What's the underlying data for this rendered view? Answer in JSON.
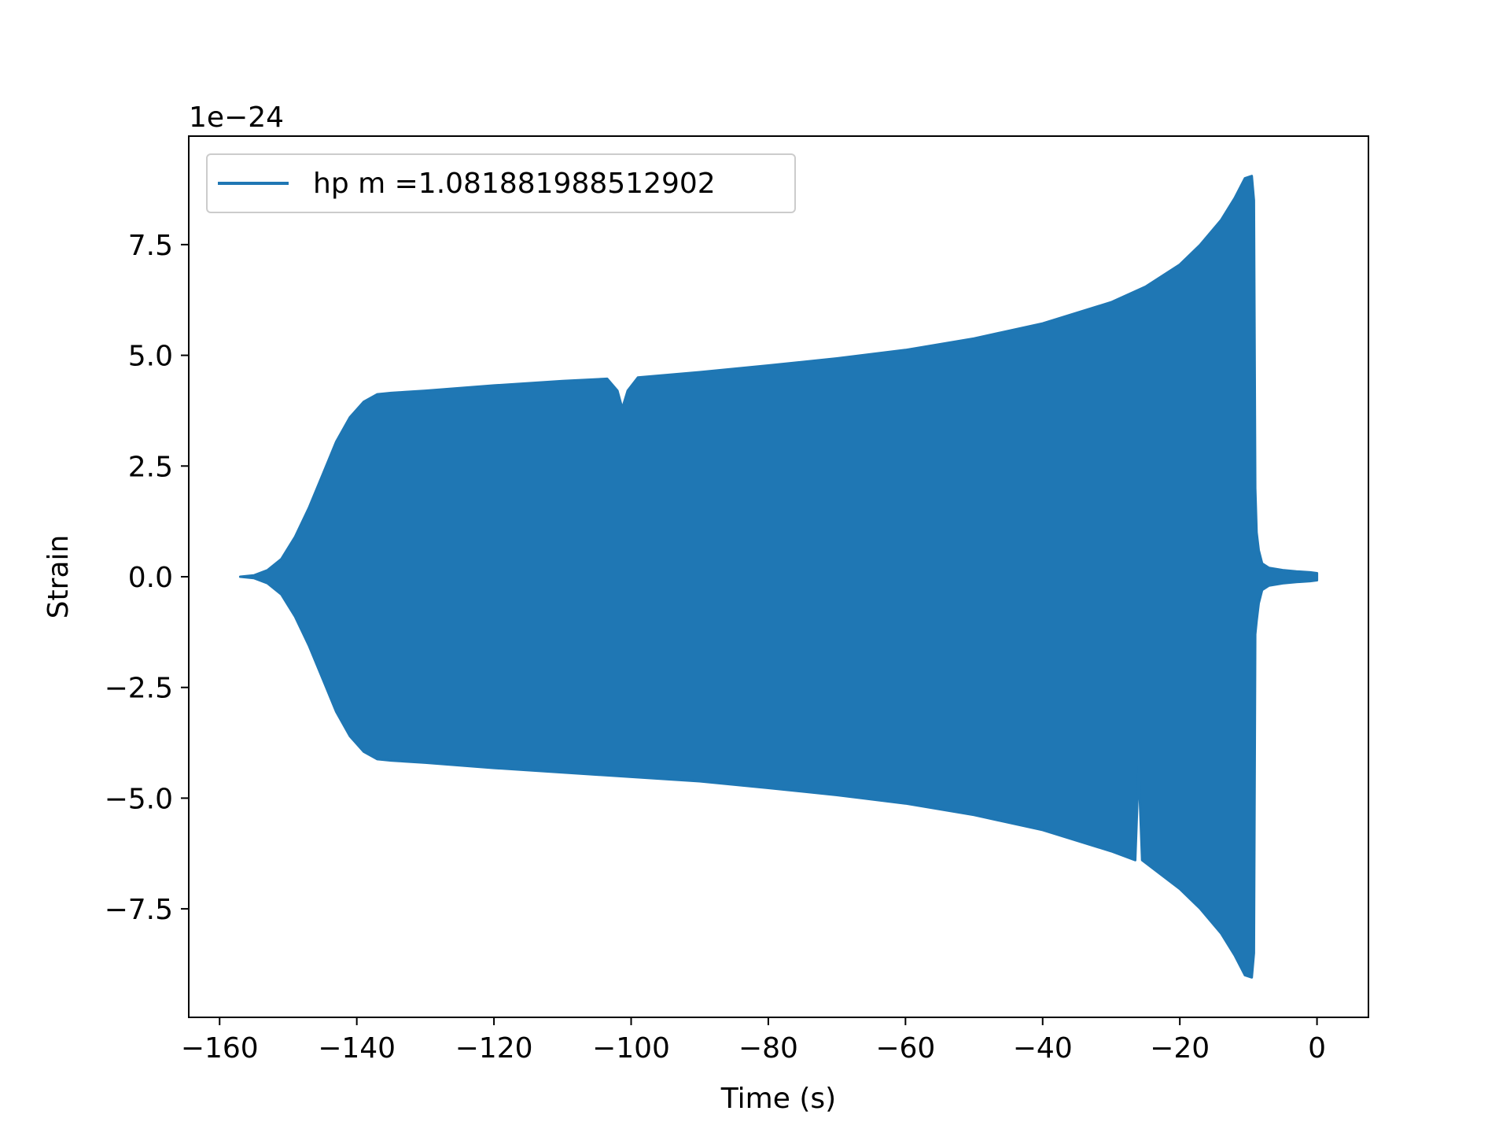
{
  "chart_data": {
    "type": "line",
    "xlabel": "Time (s)",
    "ylabel": "Strain",
    "y_offset_label": "1e−24",
    "xlim": [
      -164.5,
      7.5
    ],
    "ylim": [
      -9.95,
      9.95
    ],
    "x_ticks": [
      -160,
      -140,
      -120,
      -100,
      -80,
      -60,
      -40,
      -20,
      0
    ],
    "x_tick_labels": [
      "−160",
      "−140",
      "−120",
      "−100",
      "−80",
      "−60",
      "−40",
      "−20",
      "0"
    ],
    "y_ticks": [
      -7.5,
      -5.0,
      -2.5,
      0.0,
      2.5,
      5.0,
      7.5
    ],
    "y_tick_labels": [
      "−7.5",
      "−5.0",
      "−2.5",
      "0.0",
      "2.5",
      "5.0",
      "7.5"
    ],
    "grid": false,
    "legend_position": "top-left",
    "series": [
      {
        "name": "hp m =1.081881988512902",
        "color": "#1f77b4",
        "envelope_upper": {
          "x": [
            -157.0,
            -155.0,
            -153.0,
            -151.0,
            -149.0,
            -147.0,
            -145.0,
            -143.0,
            -141.0,
            -139.0,
            -137.0,
            -135.0,
            -133.0,
            -130.0,
            -120.0,
            -110.0,
            -103.5,
            -102.0,
            -101.3,
            -100.5,
            -99.0,
            -90.0,
            -80.0,
            -70.0,
            -60.0,
            -50.0,
            -40.0,
            -30.0,
            -25.0,
            -20.0,
            -17.0,
            -14.0,
            -12.0,
            -10.5,
            -9.5,
            -9.2,
            -9.0,
            -8.8,
            -8.5,
            -8.0,
            -7.0,
            -5.0,
            -3.0,
            -1.0,
            0.0
          ],
          "y": [
            0.0,
            0.03,
            0.15,
            0.4,
            0.9,
            1.55,
            2.3,
            3.05,
            3.6,
            3.95,
            4.12,
            4.15,
            4.17,
            4.2,
            4.32,
            4.42,
            4.47,
            4.2,
            3.8,
            4.2,
            4.5,
            4.62,
            4.77,
            4.93,
            5.12,
            5.38,
            5.72,
            6.2,
            6.55,
            7.05,
            7.5,
            8.05,
            8.55,
            9.0,
            9.05,
            8.5,
            2.0,
            1.0,
            0.6,
            0.3,
            0.2,
            0.15,
            0.12,
            0.1,
            0.08
          ]
        },
        "envelope_lower": {
          "x": [
            -157.0,
            -155.0,
            -153.0,
            -151.0,
            -149.0,
            -147.0,
            -145.0,
            -143.0,
            -141.0,
            -139.0,
            -137.0,
            -135.0,
            -133.0,
            -130.0,
            -120.0,
            -110.0,
            -100.0,
            -90.0,
            -80.0,
            -70.0,
            -60.0,
            -50.0,
            -40.0,
            -30.0,
            -26.5,
            -26.0,
            -25.5,
            -20.0,
            -17.0,
            -14.0,
            -12.0,
            -10.5,
            -9.5,
            -9.2,
            -9.0,
            -8.8,
            -8.5,
            -8.0,
            -7.0,
            -5.0,
            -3.0,
            -1.0,
            0.0
          ],
          "y": [
            0.0,
            -0.03,
            -0.15,
            -0.4,
            -0.9,
            -1.55,
            -2.3,
            -3.05,
            -3.6,
            -3.95,
            -4.12,
            -4.15,
            -4.17,
            -4.2,
            -4.32,
            -4.42,
            -4.52,
            -4.62,
            -4.77,
            -4.93,
            -5.12,
            -5.38,
            -5.72,
            -6.2,
            -6.4,
            -4.3,
            -6.4,
            -7.05,
            -7.5,
            -8.05,
            -8.55,
            -9.0,
            -9.05,
            -8.5,
            -1.3,
            -1.0,
            -0.6,
            -0.3,
            -0.2,
            -0.15,
            -0.12,
            -0.1,
            -0.08
          ]
        }
      }
    ]
  }
}
